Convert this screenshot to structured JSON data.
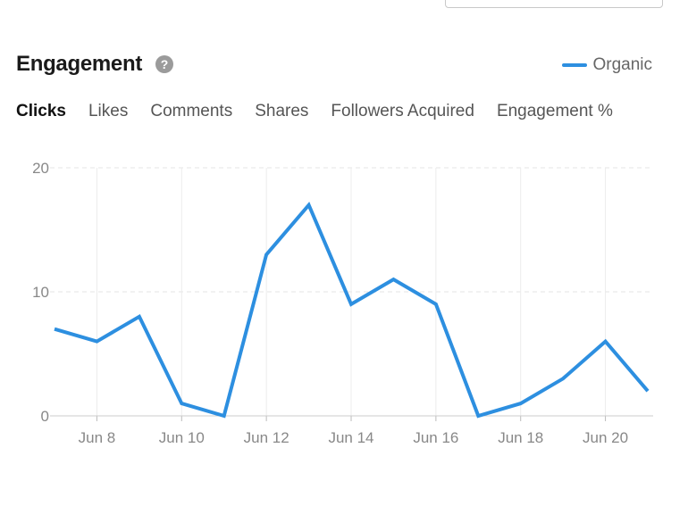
{
  "header": {
    "title": "Engagement",
    "help_glyph": "?"
  },
  "legend": {
    "label": "Organic",
    "color": "#2d8fe0"
  },
  "tabs": [
    {
      "label": "Clicks",
      "active": true
    },
    {
      "label": "Likes",
      "active": false
    },
    {
      "label": "Comments",
      "active": false
    },
    {
      "label": "Shares",
      "active": false
    },
    {
      "label": "Followers Acquired",
      "active": false
    },
    {
      "label": "Engagement %",
      "active": false
    }
  ],
  "chart_data": {
    "type": "line",
    "x": [
      "Jun 7",
      "Jun 8",
      "Jun 9",
      "Jun 10",
      "Jun 11",
      "Jun 12",
      "Jun 13",
      "Jun 14",
      "Jun 15",
      "Jun 16",
      "Jun 17",
      "Jun 18",
      "Jun 19",
      "Jun 20",
      "Jun 21"
    ],
    "series": [
      {
        "name": "Organic",
        "color": "#2d8fe0",
        "values": [
          7,
          6,
          8,
          1,
          0,
          13,
          17,
          9,
          11,
          9,
          0,
          1,
          3,
          6,
          2
        ]
      }
    ],
    "x_tick_labels": [
      "Jun 8",
      "Jun 10",
      "Jun 12",
      "Jun 14",
      "Jun 16",
      "Jun 18",
      "Jun 20"
    ],
    "y_tick_labels": [
      "0",
      "10",
      "20"
    ],
    "ylim": [
      0,
      20
    ],
    "grid": true,
    "legend_position": "top-right"
  }
}
